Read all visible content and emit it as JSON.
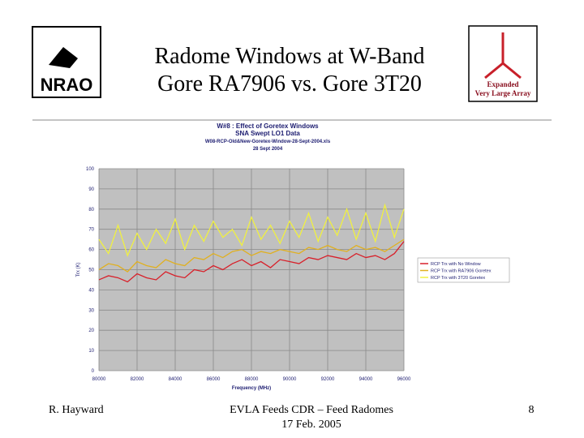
{
  "slide": {
    "title_lines": [
      "Radome Windows at W-Band",
      "Gore RA7906 vs. Gore 3T20"
    ],
    "logo_left": "NRAO",
    "logo_right": [
      "Expanded",
      "Very Large Array"
    ],
    "footer_left": "R. Hayward",
    "footer_center": [
      "EVLA Feeds CDR – Feed Radomes",
      "17 Feb. 2005"
    ],
    "page_number": "8"
  },
  "chart_data": {
    "type": "line",
    "title_lines": [
      "W#8 : Effect of Goretex Windows",
      "SNA Swept LO1 Data",
      "W08-RCP-Old&New-Goretex-Window-28-Sept-2004.xls",
      "28 Sept 2004"
    ],
    "x_label": "Frequency (MHz)",
    "y_label": "Trx (K)",
    "x": [
      80000,
      80500,
      81000,
      81500,
      82000,
      82500,
      83000,
      83500,
      84000,
      84500,
      85000,
      85500,
      86000,
      86500,
      87000,
      87500,
      88000,
      88500,
      89000,
      89500,
      90000,
      90500,
      91000,
      91500,
      92000,
      92500,
      93000,
      93500,
      94000,
      94500,
      95000,
      95500,
      96000
    ],
    "series": [
      {
        "name": "RCP Trx with No Window",
        "color": "#d8202a",
        "values": [
          45,
          47,
          46,
          44,
          48,
          46,
          45,
          49,
          47,
          46,
          50,
          49,
          52,
          50,
          53,
          55,
          52,
          54,
          51,
          55,
          54,
          53,
          56,
          55,
          57,
          56,
          55,
          58,
          56,
          57,
          55,
          58,
          64
        ]
      },
      {
        "name": "RCP Trx with RA7906 Goretex",
        "color": "#e0b020",
        "values": [
          50,
          53,
          52,
          49,
          54,
          52,
          51,
          55,
          53,
          52,
          56,
          55,
          58,
          56,
          59,
          60,
          57,
          59,
          58,
          60,
          59,
          58,
          61,
          60,
          62,
          60,
          59,
          62,
          60,
          61,
          59,
          62,
          65
        ]
      },
      {
        "name": "RCP Trx with 3T20 Goretex",
        "color": "#f0f040",
        "values": [
          65,
          58,
          72,
          57,
          68,
          60,
          70,
          63,
          75,
          60,
          72,
          64,
          74,
          66,
          70,
          62,
          76,
          65,
          72,
          63,
          74,
          66,
          78,
          64,
          76,
          67,
          80,
          65,
          78,
          64,
          82,
          66,
          80
        ]
      }
    ],
    "xlim": [
      80000,
      96000
    ],
    "xticks": [
      80000,
      82000,
      84000,
      86000,
      88000,
      90000,
      92000,
      94000,
      96000
    ],
    "ylim": [
      0,
      100
    ],
    "yticks": [
      0,
      10,
      20,
      30,
      40,
      50,
      60,
      70,
      80,
      90,
      100
    ],
    "grid": true,
    "legend": "right"
  }
}
